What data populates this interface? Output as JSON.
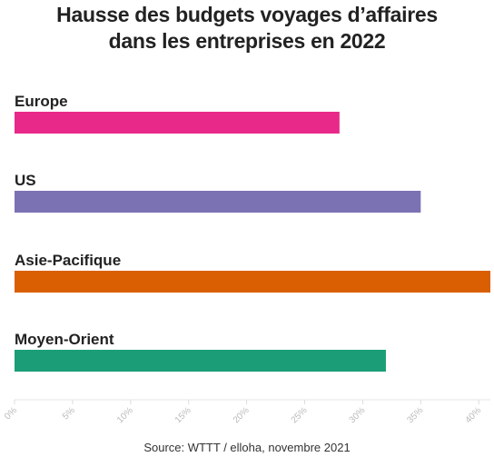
{
  "chart_data": {
    "type": "bar",
    "orientation": "horizontal",
    "title_lines": [
      "Hausse des budgets voyages d’affaires",
      "dans les entreprises en 2022"
    ],
    "categories": [
      "Europe",
      "US",
      "Asie-Pacifique",
      "Moyen-Orient"
    ],
    "values": [
      28,
      35,
      41,
      32
    ],
    "colors": [
      "#e8298a",
      "#7b72b4",
      "#d95f02",
      "#1b9e77"
    ],
    "xlim": [
      0,
      41
    ],
    "xticks": [
      0,
      5,
      10,
      15,
      20,
      25,
      30,
      35,
      40
    ],
    "xtick_labels": [
      "0%",
      "5%",
      "10%",
      "15%",
      "20%",
      "25%",
      "30%",
      "35%",
      "40%"
    ],
    "grid": false,
    "source": "Source: WTTT / elloha, novembre 2021"
  }
}
